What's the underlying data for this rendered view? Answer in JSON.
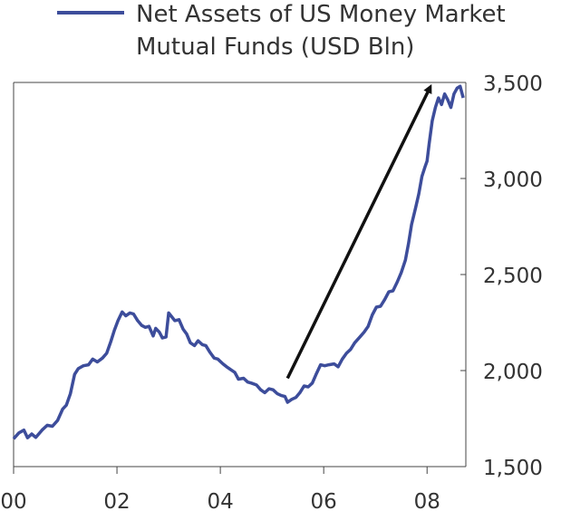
{
  "chart_data": {
    "type": "line",
    "title": "",
    "xlabel": "",
    "ylabel": "",
    "legend": {
      "placement": "top",
      "line1": "Net Assets of US Money Market",
      "line2": "Mutual Funds (USD Bln)"
    },
    "x_ticks": [
      "00",
      "02",
      "04",
      "06",
      "08"
    ],
    "y_ticks": [
      "1,500",
      "2,000",
      "2,500",
      "3,000",
      "3,500"
    ],
    "y_tick_values": [
      1500,
      2000,
      2500,
      3000,
      3500
    ],
    "x_tick_years": [
      2000,
      2002,
      2004,
      2006,
      2008
    ],
    "xlim": [
      2000.0,
      2008.75
    ],
    "ylim": [
      1500,
      3500
    ],
    "y_axis_side": "right",
    "series": [
      {
        "name": "Net Assets of US Money Market Mutual Funds (USD Bln)",
        "color": "#3d4d9b",
        "points": [
          [
            2000.0,
            1645
          ],
          [
            2000.1,
            1675
          ],
          [
            2000.2,
            1690
          ],
          [
            2000.27,
            1650
          ],
          [
            2000.35,
            1670
          ],
          [
            2000.43,
            1652
          ],
          [
            2000.55,
            1690
          ],
          [
            2000.65,
            1715
          ],
          [
            2000.75,
            1710
          ],
          [
            2000.85,
            1740
          ],
          [
            2000.95,
            1800
          ],
          [
            2001.02,
            1820
          ],
          [
            2001.1,
            1880
          ],
          [
            2001.18,
            1980
          ],
          [
            2001.25,
            2010
          ],
          [
            2001.35,
            2025
          ],
          [
            2001.45,
            2030
          ],
          [
            2001.53,
            2060
          ],
          [
            2001.62,
            2045
          ],
          [
            2001.72,
            2065
          ],
          [
            2001.8,
            2090
          ],
          [
            2001.88,
            2150
          ],
          [
            2001.95,
            2210
          ],
          [
            2002.02,
            2260
          ],
          [
            2002.1,
            2305
          ],
          [
            2002.17,
            2285
          ],
          [
            2002.25,
            2300
          ],
          [
            2002.32,
            2295
          ],
          [
            2002.4,
            2260
          ],
          [
            2002.48,
            2235
          ],
          [
            2002.55,
            2225
          ],
          [
            2002.62,
            2230
          ],
          [
            2002.7,
            2180
          ],
          [
            2002.75,
            2220
          ],
          [
            2002.82,
            2200
          ],
          [
            2002.88,
            2170
          ],
          [
            2002.95,
            2175
          ],
          [
            2003.0,
            2300
          ],
          [
            2003.06,
            2280
          ],
          [
            2003.12,
            2260
          ],
          [
            2003.2,
            2265
          ],
          [
            2003.28,
            2215
          ],
          [
            2003.35,
            2190
          ],
          [
            2003.42,
            2145
          ],
          [
            2003.5,
            2130
          ],
          [
            2003.57,
            2155
          ],
          [
            2003.65,
            2135
          ],
          [
            2003.72,
            2130
          ],
          [
            2003.8,
            2095
          ],
          [
            2003.88,
            2065
          ],
          [
            2003.95,
            2060
          ],
          [
            2004.05,
            2035
          ],
          [
            2004.12,
            2020
          ],
          [
            2004.2,
            2005
          ],
          [
            2004.28,
            1990
          ],
          [
            2004.35,
            1955
          ],
          [
            2004.45,
            1960
          ],
          [
            2004.53,
            1940
          ],
          [
            2004.6,
            1935
          ],
          [
            2004.7,
            1925
          ],
          [
            2004.78,
            1900
          ],
          [
            2004.86,
            1885
          ],
          [
            2004.94,
            1905
          ],
          [
            2005.02,
            1900
          ],
          [
            2005.1,
            1880
          ],
          [
            2005.18,
            1870
          ],
          [
            2005.25,
            1865
          ],
          [
            2005.3,
            1835
          ],
          [
            2005.38,
            1850
          ],
          [
            2005.46,
            1860
          ],
          [
            2005.54,
            1885
          ],
          [
            2005.62,
            1920
          ],
          [
            2005.7,
            1915
          ],
          [
            2005.78,
            1935
          ],
          [
            2005.86,
            1985
          ],
          [
            2005.94,
            2030
          ],
          [
            2006.02,
            2025
          ],
          [
            2006.1,
            2030
          ],
          [
            2006.2,
            2035
          ],
          [
            2006.28,
            2020
          ],
          [
            2006.36,
            2060
          ],
          [
            2006.44,
            2090
          ],
          [
            2006.52,
            2110
          ],
          [
            2006.6,
            2145
          ],
          [
            2006.7,
            2175
          ],
          [
            2006.78,
            2200
          ],
          [
            2006.86,
            2230
          ],
          [
            2006.94,
            2290
          ],
          [
            2007.02,
            2330
          ],
          [
            2007.1,
            2335
          ],
          [
            2007.18,
            2370
          ],
          [
            2007.26,
            2410
          ],
          [
            2007.34,
            2415
          ],
          [
            2007.42,
            2460
          ],
          [
            2007.5,
            2510
          ],
          [
            2007.58,
            2575
          ],
          [
            2007.64,
            2660
          ],
          [
            2007.7,
            2760
          ],
          [
            2007.78,
            2850
          ],
          [
            2007.84,
            2920
          ],
          [
            2007.9,
            3010
          ],
          [
            2007.96,
            3060
          ],
          [
            2008.0,
            3090
          ],
          [
            2008.04,
            3180
          ],
          [
            2008.1,
            3300
          ],
          [
            2008.16,
            3370
          ],
          [
            2008.22,
            3420
          ],
          [
            2008.28,
            3385
          ],
          [
            2008.34,
            3440
          ],
          [
            2008.4,
            3410
          ],
          [
            2008.46,
            3370
          ],
          [
            2008.52,
            3440
          ],
          [
            2008.58,
            3470
          ],
          [
            2008.64,
            3480
          ],
          [
            2008.7,
            3420
          ]
        ]
      }
    ],
    "annotation": {
      "type": "arrow",
      "from": [
        2005.3,
        1960
      ],
      "to": [
        2008.05,
        3470
      ],
      "color": "#111111"
    }
  }
}
